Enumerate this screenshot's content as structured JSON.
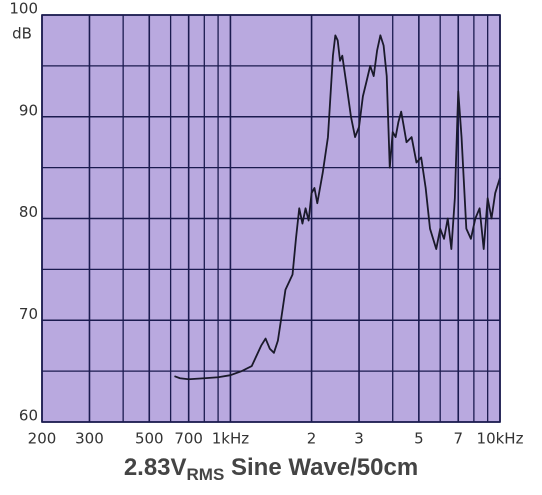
{
  "chart_data": {
    "type": "line",
    "log_x": true,
    "grid": true,
    "title": "2.83V",
    "title_subscript": "RMS",
    "title_rest": " Sine Wave/50cm",
    "y_label": "dB",
    "background": "#b9a9df",
    "grid_color": "#1b1b4f",
    "color": "#1a1a2a",
    "xlim": [
      200,
      10000
    ],
    "xticks": [
      200,
      300,
      500,
      700,
      {
        "value": 1000,
        "label": "1kHz"
      },
      {
        "value": 2000,
        "label": "2"
      },
      {
        "value": 3000,
        "label": "3"
      },
      {
        "value": 5000,
        "label": "5"
      },
      {
        "value": 7000,
        "label": "7"
      },
      {
        "value": 10000,
        "label": "10kHz"
      }
    ],
    "xminor": [
      400,
      600,
      800,
      900,
      4000,
      6000,
      8000,
      9000
    ],
    "ylim": [
      60,
      100
    ],
    "yticks": [
      60,
      70,
      80,
      90,
      100
    ],
    "yminor": [
      65,
      75,
      85,
      95
    ],
    "x": [
      620,
      650,
      700,
      800,
      900,
      1000,
      1100,
      1200,
      1300,
      1350,
      1400,
      1450,
      1500,
      1550,
      1600,
      1700,
      1750,
      1800,
      1850,
      1900,
      1950,
      2000,
      2050,
      2100,
      2200,
      2300,
      2400,
      2450,
      2500,
      2550,
      2600,
      2700,
      2800,
      2900,
      3000,
      3100,
      3200,
      3300,
      3400,
      3500,
      3600,
      3700,
      3800,
      3900,
      4000,
      4100,
      4200,
      4300,
      4400,
      4500,
      4700,
      4900,
      5100,
      5300,
      5500,
      5800,
      6000,
      6200,
      6400,
      6600,
      6800,
      7000,
      7200,
      7500,
      7800,
      8100,
      8400,
      8700,
      9000,
      9300,
      9600,
      10000
    ],
    "values": [
      64.5,
      64.3,
      64.2,
      64.3,
      64.4,
      64.6,
      65.0,
      65.5,
      67.5,
      68.2,
      67.2,
      66.8,
      68.0,
      70.5,
      73,
      74.5,
      78,
      81,
      79.5,
      81,
      79.8,
      82.5,
      83,
      81.5,
      84.5,
      88,
      96,
      98,
      97.5,
      95.5,
      96,
      93,
      90,
      88,
      89,
      92,
      93.5,
      95,
      94,
      96.5,
      98,
      97,
      94,
      85,
      88.5,
      88,
      89.5,
      90.5,
      89,
      87.5,
      88,
      85.5,
      86,
      83,
      79,
      77,
      79,
      78,
      80,
      77,
      82,
      92.5,
      88,
      79,
      78,
      80,
      81,
      77,
      82,
      80,
      82.5,
      84
    ]
  }
}
